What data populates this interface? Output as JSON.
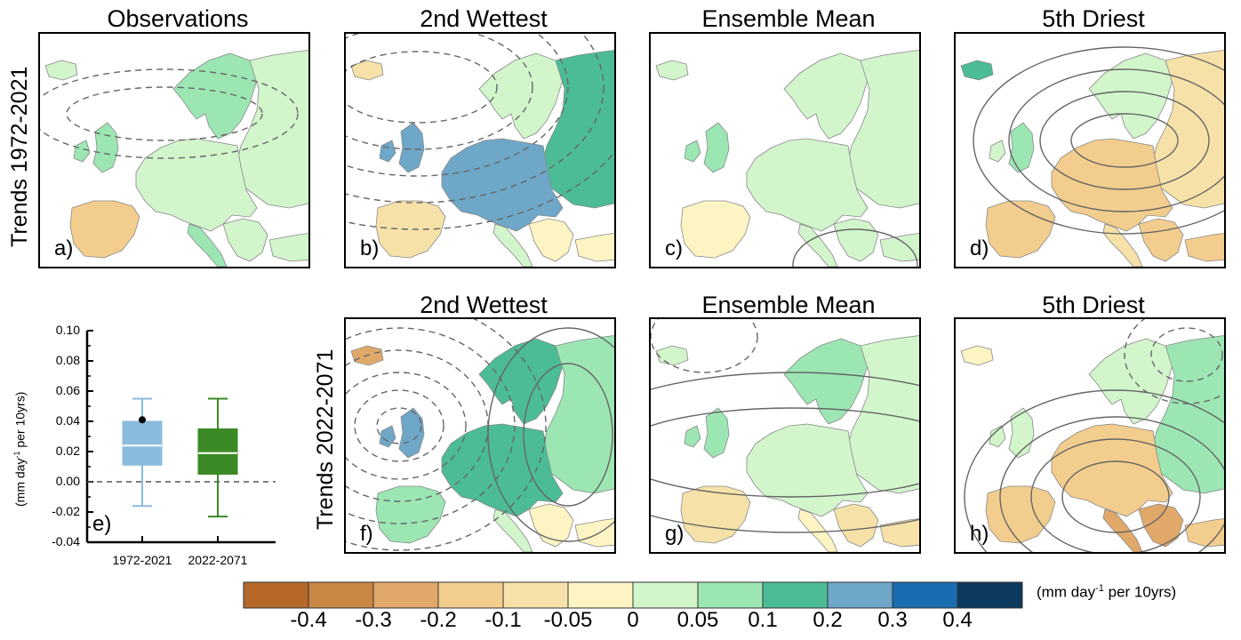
{
  "titles": {
    "a": "Observations",
    "b": "2nd Wettest",
    "c": "Ensemble Mean",
    "d": "5th Driest",
    "f": "2nd Wettest",
    "g": "Ensemble Mean",
    "h": "5th Driest"
  },
  "row_labels": {
    "top": "Trends 1972-2021",
    "bottom": "Trends 2022-2071"
  },
  "panel_labels": {
    "a": "a)",
    "b": "b)",
    "c": "c)",
    "d": "d)",
    "e": "e)",
    "f": "f)",
    "g": "g)",
    "h": "h)"
  },
  "colorbar": {
    "colors": [
      "#b5682a",
      "#ca8643",
      "#e0a96a",
      "#f3cd8e",
      "#f6e2a8",
      "#fdf4c3",
      "#d2f5cc",
      "#9ce6b4",
      "#4bbc96",
      "#6fa7c9",
      "#1a6cb0",
      "#0b3a5e"
    ],
    "tick_labels": [
      "-0.4",
      "-0.3",
      "-0.2",
      "-0.1",
      "-0.05",
      "0",
      "0.05",
      "0.1",
      "0.2",
      "0.3",
      "0.4"
    ],
    "units_main": "(mm day",
    "units_sup": "-1",
    "units_tail": " per 10yrs)"
  },
  "chart_data": {
    "type": "box",
    "panel": "e)",
    "categories": [
      "1972-2021",
      "2022-2071"
    ],
    "ylabel_main": "(mm day",
    "ylabel_sup": "-1",
    "ylabel_tail": " per 10yrs)",
    "ylim": [
      -0.04,
      0.1
    ],
    "yticks": [
      "0.10",
      "0.08",
      "0.06",
      "0.04",
      "0.02",
      "0.00",
      "-0.02",
      "-0.04"
    ],
    "ytick_values": [
      0.1,
      0.08,
      0.06,
      0.04,
      0.02,
      0.0,
      -0.02,
      -0.04
    ],
    "boxes": [
      {
        "name": "1972-2021",
        "color": "#8bbbdc",
        "whisker_low": -0.016,
        "q1": 0.011,
        "median": 0.024,
        "q3": 0.04,
        "whisker_high": 0.055,
        "observed": 0.041
      },
      {
        "name": "2022-2071",
        "color": "#3b8a25",
        "whisker_low": -0.023,
        "q1": 0.005,
        "median": 0.019,
        "q3": 0.035,
        "whisker_high": 0.055
      }
    ],
    "reference_line": 0.0
  }
}
